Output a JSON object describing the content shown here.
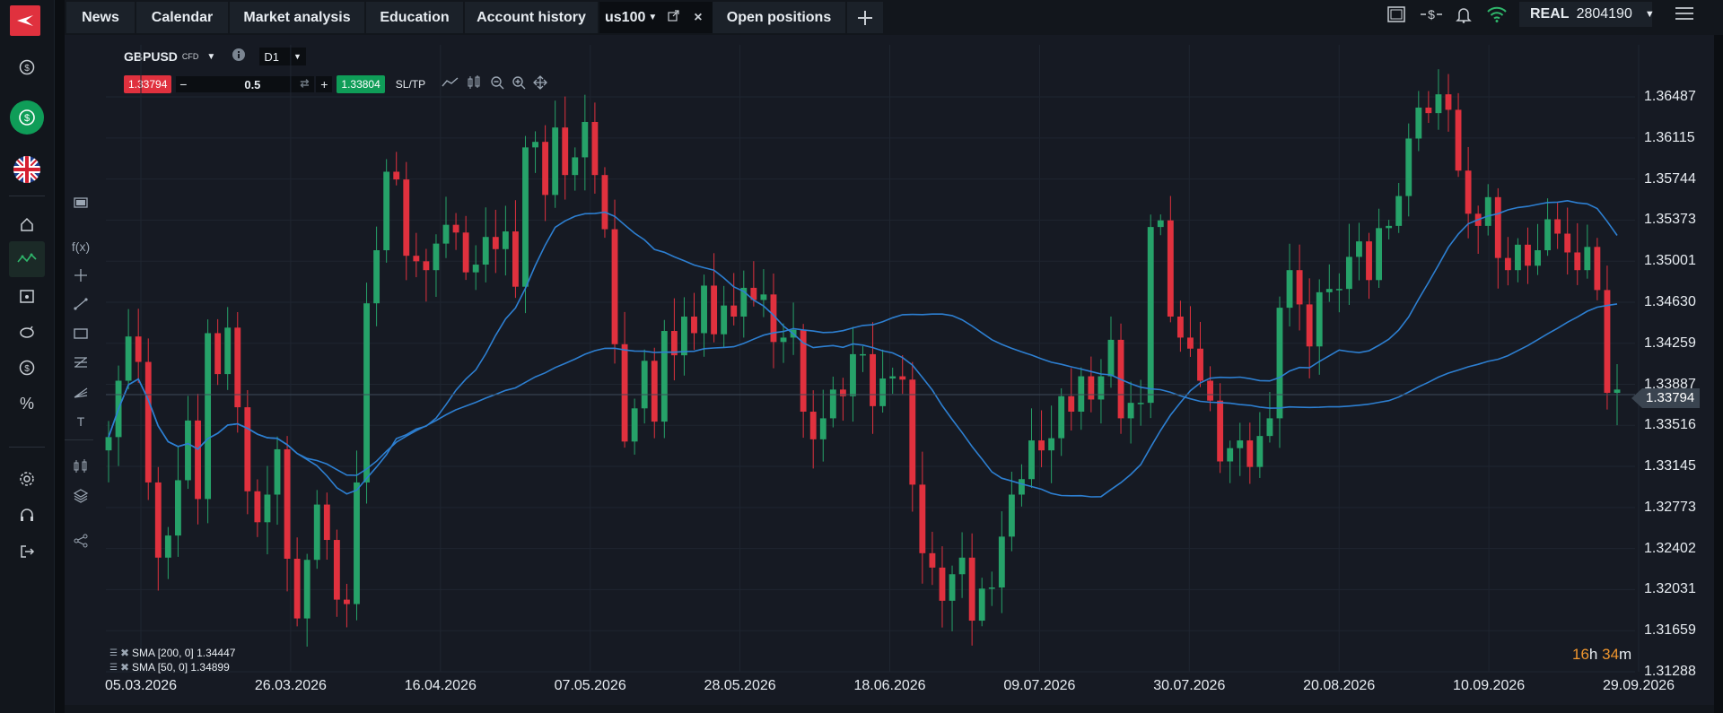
{
  "app": {
    "logo_icon": "x-logo-icon"
  },
  "left_rail": {
    "items": [
      {
        "name": "deposit-icon"
      },
      {
        "name": "funds-icon"
      },
      {
        "name": "uk-flag-icon"
      },
      {
        "name": "home-icon"
      },
      {
        "name": "market-watch-icon"
      },
      {
        "name": "calendar-icon"
      },
      {
        "name": "savings-icon"
      },
      {
        "name": "dollar-icon"
      },
      {
        "name": "percent-icon"
      },
      {
        "name": "settings-icon"
      },
      {
        "name": "support-icon"
      },
      {
        "name": "logout-icon"
      }
    ]
  },
  "tabs": [
    {
      "label": "News"
    },
    {
      "label": "Calendar"
    },
    {
      "label": "Market analysis"
    },
    {
      "label": "Education"
    },
    {
      "label": "Account history"
    },
    {
      "label": "us100"
    },
    {
      "label": "Open positions"
    }
  ],
  "account": {
    "type": "REAL",
    "number": "2804190"
  },
  "chart": {
    "symbol": "GBPUSD",
    "symbol_type": "CFD",
    "timeframe": "D1",
    "sell_price": "1.33794",
    "buy_price": "1.33804",
    "volume": "0.5",
    "sltp_label": "SL/TP",
    "current_price": "1.33794",
    "countdown_hours": "16",
    "countdown_h_unit": "h",
    "countdown_minutes": "34",
    "countdown_m_unit": "m",
    "indicators": [
      {
        "label": "SMA [200, 0] 1.34447"
      },
      {
        "label": "SMA [50, 0] 1.34899"
      }
    ],
    "price_axis": [
      "1.36487",
      "1.36115",
      "1.35744",
      "1.35373",
      "1.35001",
      "1.34630",
      "1.34259",
      "1.33887",
      "1.33516",
      "1.33145",
      "1.32773",
      "1.32402",
      "1.32031",
      "1.31659",
      "1.31288"
    ],
    "date_axis": [
      "05.03.2026",
      "26.03.2026",
      "16.04.2026",
      "07.05.2026",
      "28.05.2026",
      "18.06.2026",
      "09.07.2026",
      "30.07.2026",
      "20.08.2026",
      "10.09.2026",
      "29.09.2026"
    ],
    "colors": {
      "bull": "#26a269",
      "bear": "#e0313e",
      "sma": "#2d7fd1",
      "bg": "#161a23"
    }
  },
  "chart_data": {
    "type": "candlestick",
    "title": "GBPUSD",
    "ylim": [
      1.31288,
      1.36487
    ],
    "closes": [
      1.3341,
      1.3392,
      1.3432,
      1.3409,
      1.33,
      1.3232,
      1.3252,
      1.3302,
      1.3356,
      1.3285,
      1.3435,
      1.3398,
      1.344,
      1.3368,
      1.3292,
      1.3264,
      1.3289,
      1.333,
      1.3231,
      1.3177,
      1.323,
      1.328,
      1.3248,
      1.3194,
      1.319,
      1.33,
      1.3462,
      1.351,
      1.3581,
      1.3574,
      1.3505,
      1.35,
      1.3492,
      1.3516,
      1.3533,
      1.3526,
      1.349,
      1.3497,
      1.3522,
      1.3511,
      1.3527,
      1.3477,
      1.3603,
      1.3608,
      1.356,
      1.3621,
      1.3578,
      1.3594,
      1.3626,
      1.3578,
      1.3529,
      1.3425,
      1.3337,
      1.3367,
      1.341,
      1.3355,
      1.3437,
      1.3415,
      1.345,
      1.3435,
      1.3478,
      1.3434,
      1.346,
      1.345,
      1.3476,
      1.3465,
      1.347,
      1.3427,
      1.3431,
      1.3438,
      1.3364,
      1.3339,
      1.3358,
      1.3384,
      1.3378,
      1.3416,
      1.3416,
      1.3369,
      1.3394,
      1.3396,
      1.3393,
      1.3298,
      1.3236,
      1.3223,
      1.3193,
      1.3217,
      1.3232,
      1.3175,
      1.3204,
      1.3205,
      1.3251,
      1.3289,
      1.3303,
      1.3338,
      1.3329,
      1.334,
      1.3378,
      1.3364,
      1.3396,
      1.3375,
      1.3396,
      1.3429,
      1.3358,
      1.3372,
      1.3372,
      1.3531,
      1.3537,
      1.345,
      1.3431,
      1.3421,
      1.3392,
      1.3374,
      1.3319,
      1.3331,
      1.3338,
      1.3314,
      1.3342,
      1.3358,
      1.3458,
      1.3492,
      1.3461,
      1.3423,
      1.3472,
      1.3475,
      1.3475,
      1.3504,
      1.3518,
      1.3483,
      1.353,
      1.3532,
      1.3559,
      1.3611,
      1.3639,
      1.3634,
      1.3651,
      1.3637,
      1.3582,
      1.3543,
      1.3532,
      1.3558,
      1.3503,
      1.3492,
      1.3515,
      1.3496,
      1.351,
      1.3538,
      1.3525,
      1.3508,
      1.3492,
      1.3513,
      1.3474,
      1.3381,
      1.3384
    ]
  }
}
